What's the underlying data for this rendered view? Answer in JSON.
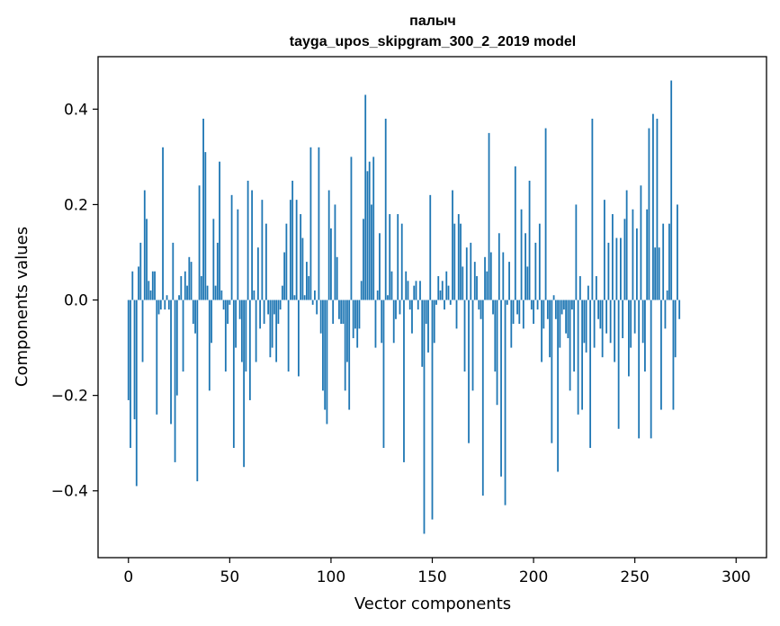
{
  "chart_data": {
    "type": "bar",
    "title": "палыч",
    "subtitle": "tayga_upos_skipgram_300_2_2019 model",
    "xlabel": "Vector components",
    "ylabel": "Components values",
    "xlim": [
      -15,
      315
    ],
    "ylim": [
      -0.54,
      0.51
    ],
    "x_ticks": [
      0,
      50,
      100,
      150,
      200,
      250,
      300
    ],
    "x_tick_labels": [
      "0",
      "50",
      "100",
      "150",
      "200",
      "250",
      "300"
    ],
    "y_ticks": [
      -0.4,
      -0.2,
      0.0,
      0.2,
      0.4
    ],
    "y_tick_labels": [
      "−0.4",
      "−0.2",
      "0.0",
      "0.2",
      "0.4"
    ],
    "grid": false,
    "bar_color": "#1f77b4",
    "values": [
      -0.21,
      -0.31,
      0.06,
      -0.25,
      -0.39,
      0.07,
      0.12,
      -0.13,
      0.23,
      0.17,
      0.04,
      0.02,
      0.06,
      0.06,
      -0.24,
      -0.03,
      -0.02,
      0.32,
      -0.02,
      0.01,
      -0.02,
      -0.26,
      0.12,
      -0.34,
      -0.2,
      0.01,
      0.05,
      -0.15,
      0.06,
      0.03,
      0.09,
      0.08,
      -0.05,
      -0.07,
      -0.38,
      0.24,
      0.05,
      0.38,
      0.31,
      0.03,
      -0.19,
      -0.09,
      0.17,
      0.03,
      0.12,
      0.29,
      0.02,
      -0.02,
      -0.15,
      -0.05,
      -0.01,
      0.22,
      -0.31,
      -0.1,
      0.19,
      -0.04,
      -0.13,
      -0.35,
      -0.15,
      0.25,
      -0.21,
      0.23,
      0.02,
      -0.13,
      0.11,
      -0.06,
      0.21,
      -0.05,
      0.16,
      -0.03,
      -0.12,
      -0.1,
      -0.03,
      -0.13,
      -0.05,
      -0.02,
      0.03,
      0.1,
      0.16,
      -0.15,
      0.21,
      0.25,
      0.01,
      0.21,
      -0.16,
      0.18,
      0.13,
      0.01,
      0.08,
      0.05,
      0.32,
      -0.01,
      0.02,
      -0.03,
      0.32,
      -0.07,
      -0.19,
      -0.23,
      -0.26,
      0.23,
      0.15,
      -0.05,
      0.2,
      0.09,
      -0.04,
      -0.05,
      -0.05,
      -0.19,
      -0.13,
      -0.23,
      0.3,
      -0.08,
      -0.06,
      -0.1,
      -0.06,
      0.04,
      0.17,
      0.43,
      0.27,
      0.29,
      0.2,
      0.3,
      -0.1,
      0.02,
      0.14,
      -0.09,
      -0.31,
      0.38,
      0.01,
      0.18,
      0.06,
      -0.09,
      -0.04,
      0.18,
      -0.03,
      0.16,
      -0.34,
      0.06,
      0.04,
      -0.02,
      -0.07,
      0.03,
      0.04,
      -0.02,
      0.04,
      -0.14,
      -0.49,
      -0.05,
      -0.11,
      0.22,
      -0.46,
      -0.09,
      -0.01,
      0.05,
      0.02,
      0.04,
      -0.02,
      0.06,
      0.03,
      -0.01,
      0.23,
      0.16,
      -0.06,
      0.18,
      0.16,
      0.07,
      -0.15,
      0.11,
      -0.3,
      0.12,
      -0.19,
      0.08,
      0.05,
      -0.02,
      -0.04,
      -0.41,
      0.09,
      0.06,
      0.35,
      0.1,
      -0.03,
      -0.15,
      -0.22,
      0.14,
      -0.37,
      0.1,
      -0.43,
      -0.01,
      0.08,
      -0.1,
      -0.05,
      0.28,
      -0.03,
      -0.05,
      0.19,
      -0.06,
      0.14,
      0.07,
      0.25,
      -0.02,
      -0.05,
      0.12,
      -0.02,
      0.16,
      -0.13,
      -0.06,
      0.36,
      -0.04,
      -0.12,
      -0.3,
      0.01,
      -0.04,
      -0.36,
      -0.1,
      -0.03,
      -0.02,
      -0.07,
      -0.08,
      -0.19,
      -0.02,
      -0.15,
      0.2,
      -0.24,
      0.05,
      -0.23,
      -0.09,
      -0.11,
      0.03,
      -0.31,
      0.38,
      -0.1,
      0.05,
      -0.04,
      -0.06,
      -0.12,
      0.21,
      -0.07,
      0.12,
      -0.09,
      0.18,
      -0.13,
      0.13,
      -0.27,
      0.13,
      -0.08,
      0.17,
      0.23,
      -0.16,
      -0.1,
      0.19,
      -0.07,
      0.15,
      -0.29,
      0.24,
      -0.09,
      -0.15,
      0.19,
      0.36,
      -0.29,
      0.39,
      0.11,
      0.38,
      0.11,
      -0.23,
      0.16,
      -0.06,
      0.02,
      0.16,
      0.46,
      -0.23,
      -0.12,
      0.2,
      -0.04
    ]
  }
}
